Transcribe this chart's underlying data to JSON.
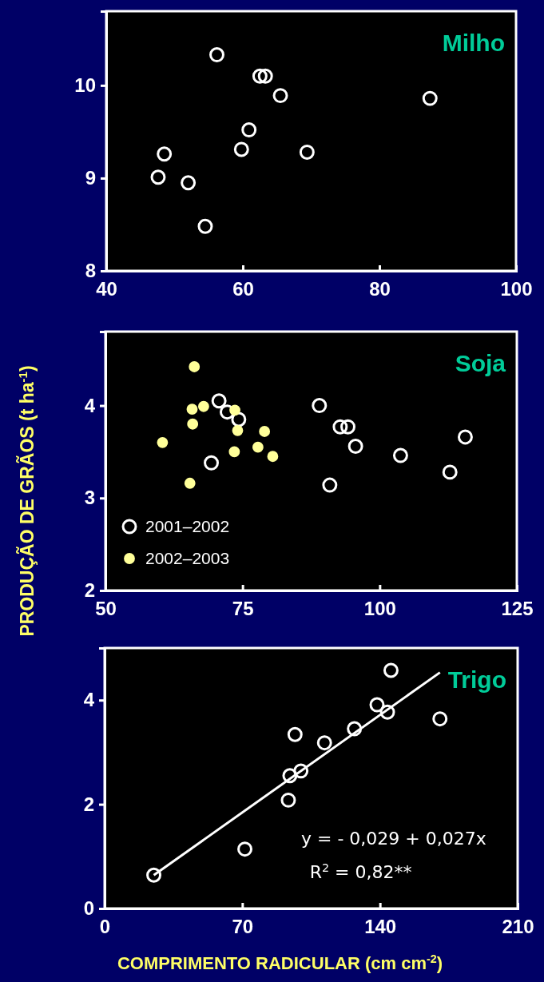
{
  "chart_data": [
    {
      "type": "scatter",
      "title": "Milho",
      "xlim": [
        40,
        100
      ],
      "xticks": [
        40,
        60,
        80,
        100
      ],
      "ylim": [
        8,
        10.8
      ],
      "yticks": [
        8,
        9,
        10
      ],
      "marker": "circle",
      "grid": false,
      "series": [
        {
          "color": "#ffffff",
          "x": [
            56.2,
            62.5,
            63.3,
            65.5,
            87.4,
            60.9,
            59.8,
            48.5,
            69.4,
            47.6,
            52.0,
            54.5
          ],
          "values": [
            10.33,
            10.1,
            10.1,
            9.89,
            9.86,
            9.52,
            9.31,
            9.26,
            9.28,
            9.01,
            8.95,
            8.48
          ]
        }
      ]
    },
    {
      "type": "scatter",
      "title": "Soja",
      "ylabel": "PRODUÇÃO DE GRÃOS (t ha$^{-1}$)",
      "xlim": [
        50,
        125
      ],
      "xticks": [
        50,
        75,
        100,
        125
      ],
      "ylim": [
        2,
        4.8
      ],
      "yticks": [
        2,
        3,
        4
      ],
      "marker": "circle",
      "grid": false,
      "legend": "bottom left",
      "series": [
        {
          "name": "2001–2002",
          "color": "#ffffff",
          "x": [
            70.7,
            72.2,
            74.3,
            89.0,
            92.8,
            94.2,
            95.6,
            103.8,
            115.6,
            112.8,
            90.9,
            69.3
          ],
          "values": [
            4.05,
            3.93,
            3.85,
            4.0,
            3.77,
            3.77,
            3.56,
            3.46,
            3.66,
            3.28,
            3.14,
            3.38
          ]
        },
        {
          "name": "2002–2003",
          "color": "#ffff99",
          "x": [
            66.2,
            65.8,
            67.9,
            65.9,
            73.6,
            74.1,
            79.0,
            60.4,
            77.8,
            73.5,
            80.5,
            65.4
          ],
          "values": [
            4.42,
            3.96,
            3.99,
            3.8,
            3.95,
            3.73,
            3.72,
            3.6,
            3.55,
            3.5,
            3.45,
            3.16
          ]
        }
      ]
    },
    {
      "type": "scatter",
      "title": "Trigo",
      "xlabel": "COMPRIMENTO RADICULAR (cm cm$^{-2}$)",
      "xlim": [
        0,
        210
      ],
      "xticks": [
        0,
        70,
        140,
        210
      ],
      "ylim": [
        0,
        5
      ],
      "yticks": [
        0,
        2,
        4
      ],
      "marker": "circle",
      "grid": false,
      "annotations": [
        "y = - 0,029 + 0,027x",
        "R$^{2}$ = 0,82**"
      ],
      "series": [
        {
          "color": "#ffffff",
          "x": [
            25.0,
            71.3,
            93.4,
            94.2,
            99.8,
            96.8,
            111.8,
            127.0,
            138.5,
            143.8,
            145.6,
            170.5
          ],
          "values": [
            0.64,
            1.14,
            2.08,
            2.55,
            2.64,
            3.34,
            3.18,
            3.45,
            3.91,
            3.77,
            4.57,
            3.64
          ]
        },
        {
          "type": "line",
          "marker": "none",
          "color": "#ffffff",
          "x": [
            25.0,
            170.5
          ],
          "values": [
            0.64,
            4.53
          ]
        }
      ]
    }
  ]
}
